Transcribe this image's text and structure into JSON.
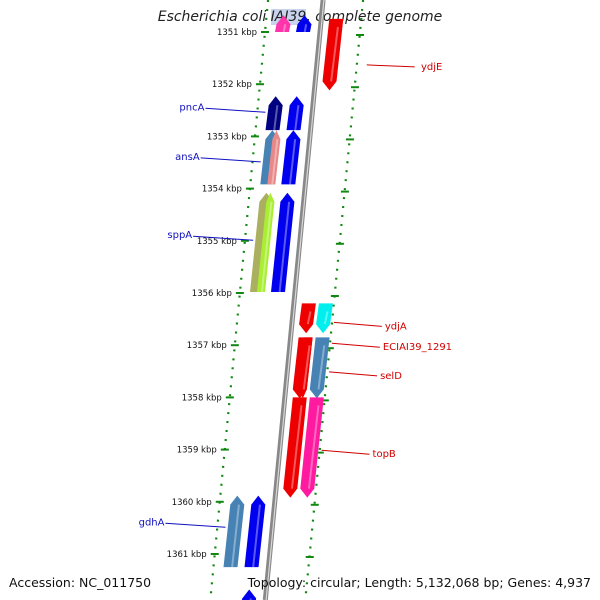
{
  "title": {
    "pre": "Escherichia coli ",
    "highlight": "IAI39",
    "post": ", complete genome"
  },
  "footer": {
    "accession": "Accession: NC_011750",
    "summary": "Topology: circular; Length: 5,132,068 bp; Genes: 4,937"
  },
  "ticks": [
    {
      "kbp": 1351,
      "label": "1351 kbp"
    },
    {
      "kbp": 1352,
      "label": "1352 kbp"
    },
    {
      "kbp": 1353,
      "label": "1353 kbp"
    },
    {
      "kbp": 1354,
      "label": "1354 kbp"
    },
    {
      "kbp": 1355,
      "label": "1355 kbp"
    },
    {
      "kbp": 1356,
      "label": "1356 kbp"
    },
    {
      "kbp": 1357,
      "label": "1357 kbp"
    },
    {
      "kbp": 1358,
      "label": "1358 kbp"
    },
    {
      "kbp": 1359,
      "label": "1359 kbp"
    },
    {
      "kbp": 1360,
      "label": "1360 kbp"
    },
    {
      "kbp": 1361,
      "label": "1361 kbp"
    }
  ],
  "genes": [
    {
      "name": "",
      "strand": "+",
      "start": 1350.7,
      "end": 1351.0,
      "color": "#ff33aa",
      "lane": 0
    },
    {
      "name": "",
      "strand": "+",
      "start": 1350.7,
      "end": 1351.0,
      "color": "#0000ee",
      "lane": 1
    },
    {
      "name": "",
      "strand": "-",
      "start": 1350.75,
      "end": 1352.1,
      "color": "#ee0000",
      "lane": 2
    },
    {
      "name": "pncA",
      "strand": "+",
      "start": 1352.25,
      "end": 1352.88,
      "color": "#000080",
      "lane": 0,
      "labelY": 1352.5
    },
    {
      "name": "",
      "strand": "+",
      "start": 1352.25,
      "end": 1352.88,
      "color": "#0000ee",
      "lane": 1
    },
    {
      "name": "ansA",
      "strand": "+",
      "start": 1352.9,
      "end": 1353.92,
      "color": "#4682b4",
      "lane": 0,
      "labelY": 1353.45
    },
    {
      "name": "",
      "strand": "+",
      "start": 1352.9,
      "end": 1353.92,
      "color": "#e88888",
      "lane": 0.5
    },
    {
      "name": "",
      "strand": "+",
      "start": 1352.9,
      "end": 1353.92,
      "color": "#0000ee",
      "lane": 1
    },
    {
      "name": "sppA",
      "strand": "+",
      "start": 1354.1,
      "end": 1355.98,
      "color": "#aab060",
      "lane": 0,
      "labelY": 1354.95
    },
    {
      "name": "",
      "strand": "+",
      "start": 1354.1,
      "end": 1355.98,
      "color": "#aaee33",
      "lane": 0.5
    },
    {
      "name": "",
      "strand": "+",
      "start": 1354.1,
      "end": 1355.98,
      "color": "#0000ee",
      "lane": 1
    },
    {
      "name": "ydjA",
      "strand": "-",
      "start": 1356.2,
      "end": 1356.75,
      "color": "#00eeee",
      "lane": 3,
      "labelY": 1356.6
    },
    {
      "name": "",
      "strand": "-",
      "start": 1356.2,
      "end": 1356.75,
      "color": "#ee0000",
      "lane": 2
    },
    {
      "name": "ECIAI39_1291",
      "strand": "-",
      "start": 1356.85,
      "end": 1358.0,
      "color": "#4682b4",
      "lane": 3,
      "labelY": 1357.0
    },
    {
      "name": "",
      "strand": "-",
      "start": 1356.85,
      "end": 1358.0,
      "color": "#ee0000",
      "lane": 2
    },
    {
      "name": "selD",
      "strand": "-",
      "start": 1356.85,
      "end": 1358.0,
      "color": "#ee0000",
      "lane": 2.5,
      "labelY": 1357.55
    },
    {
      "name": "topB",
      "strand": "-",
      "start": 1358.0,
      "end": 1359.9,
      "color": "#ff1aa0",
      "lane": 3,
      "labelY": 1359.05
    },
    {
      "name": "",
      "strand": "-",
      "start": 1358.0,
      "end": 1359.9,
      "color": "#ee0000",
      "lane": 2
    },
    {
      "name": "gdhA",
      "strand": "+",
      "start": 1359.9,
      "end": 1361.25,
      "color": "#4682b4",
      "lane": 0,
      "labelY": 1360.45
    },
    {
      "name": "",
      "strand": "+",
      "start": 1359.9,
      "end": 1361.25,
      "color": "#0000ee",
      "lane": 1
    },
    {
      "name": "",
      "strand": "+",
      "start": 1361.7,
      "end": 1361.95,
      "color": "#0000ee",
      "lane": 1
    }
  ]
}
